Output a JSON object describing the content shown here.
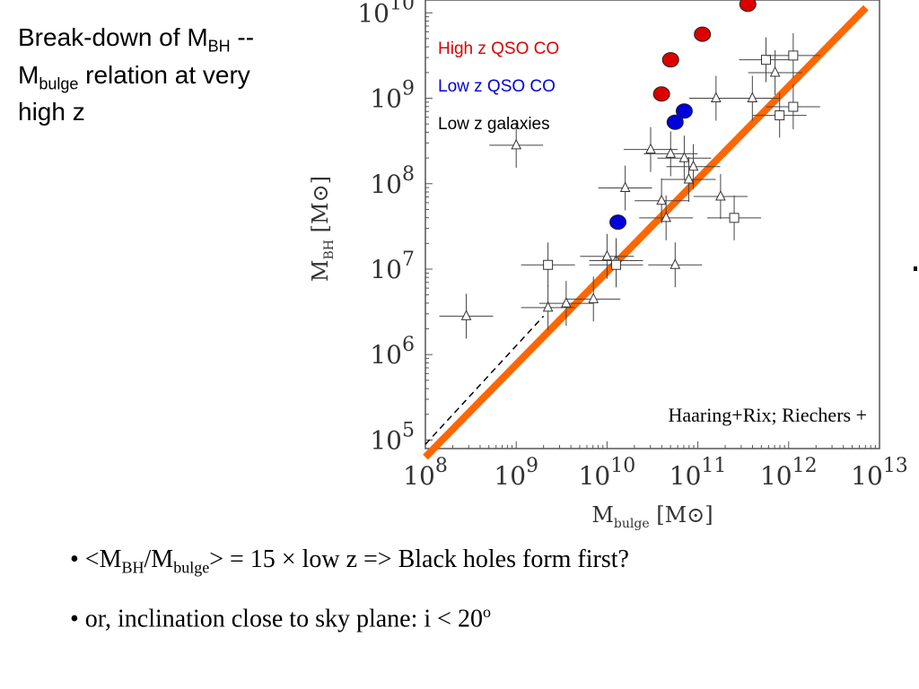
{
  "title": {
    "line1_pre": "Break-down of M",
    "line1_sub": "BH",
    "line1_post": " --",
    "line2_pre": "M",
    "line2_sub": "bulge",
    "line2_post": " relation at very",
    "line3": "high z"
  },
  "colors": {
    "high_z_qso": "#dd0000",
    "low_z_qso": "#0000dd",
    "fit_line": "#ff6600",
    "frame": "#555555"
  },
  "chart_data": {
    "type": "scatter",
    "xlabel": {
      "main": "M",
      "sub": "bulge",
      "unit": "[M⊙]"
    },
    "ylabel": {
      "main": "M",
      "sub": "BH",
      "unit": "[M⊙]"
    },
    "x_scale": "log",
    "y_scale": "log",
    "xlim_log10": [
      8,
      13
    ],
    "ylim_log10": [
      4.9,
      10.15
    ],
    "x_ticks_log10": [
      8,
      9,
      10,
      11,
      12,
      13
    ],
    "y_ticks_log10": [
      5,
      6,
      7,
      8,
      9,
      10
    ],
    "tick_base": "10",
    "legend": [
      {
        "label": "High z QSO CO",
        "color": "#dd0000"
      },
      {
        "label": "Low z QSO CO",
        "color": "#0000dd"
      },
      {
        "label": "Low z galaxies",
        "color": "#000000"
      }
    ],
    "legend_position": "top-left",
    "annotation": "Haaring+Rix; Riechers +",
    "series": [
      {
        "name": "High z QSO CO",
        "marker": "circle",
        "color": "#dd0000",
        "points": [
          [
            11.55,
            10.1
          ],
          [
            11.05,
            9.75
          ],
          [
            10.7,
            9.45
          ],
          [
            10.6,
            9.05
          ]
        ]
      },
      {
        "name": "Low z QSO CO",
        "marker": "circle",
        "color": "#0000dd",
        "points": [
          [
            10.85,
            8.85
          ],
          [
            10.75,
            8.72
          ],
          [
            10.12,
            7.55
          ]
        ]
      },
      {
        "name": "Low z galaxies (triangles)",
        "marker": "triangle",
        "color": "#000000",
        "points": [
          [
            11.2,
            9.0
          ],
          [
            11.6,
            9.0
          ],
          [
            11.85,
            9.3
          ],
          [
            10.48,
            8.4
          ],
          [
            10.7,
            8.35
          ],
          [
            10.85,
            8.3
          ],
          [
            10.95,
            8.2
          ],
          [
            10.9,
            8.05
          ],
          [
            10.2,
            7.95
          ],
          [
            10.6,
            7.8
          ],
          [
            10.65,
            7.6
          ],
          [
            11.25,
            7.85
          ],
          [
            10.1,
            7.1
          ],
          [
            9.85,
            6.65
          ],
          [
            10.75,
            7.05
          ],
          [
            10.0,
            7.15
          ],
          [
            9.35,
            6.55
          ],
          [
            9.55,
            6.6
          ],
          [
            8.45,
            6.45
          ],
          [
            9.0,
            8.45
          ]
        ]
      },
      {
        "name": "Low z galaxies (squares)",
        "marker": "square",
        "color": "#000000",
        "points": [
          [
            11.75,
            9.45
          ],
          [
            12.05,
            9.5
          ],
          [
            12.05,
            8.9
          ],
          [
            11.9,
            8.8
          ],
          [
            11.4,
            7.6
          ],
          [
            9.35,
            7.05
          ],
          [
            10.1,
            7.05
          ]
        ]
      }
    ],
    "lines": [
      {
        "name": "fit",
        "style": "solid",
        "color": "#ff6600",
        "x_log10": [
          8.0,
          12.85
        ],
        "y_log10": [
          4.8,
          10.06
        ]
      },
      {
        "name": "reference",
        "style": "dashed",
        "color": "#000000",
        "x_log10": [
          8.0,
          9.3
        ],
        "y_log10": [
          4.95,
          6.45
        ]
      }
    ]
  },
  "bullets": [
    {
      "part1": "• <M",
      "sub1": "BH",
      "part2": "/M",
      "sub2": "bulge",
      "part3": ">  = 15 × low z => Black holes form first?"
    },
    {
      "text": "• or, inclination close to sky plane: i < 20",
      "sup": "o"
    }
  ]
}
